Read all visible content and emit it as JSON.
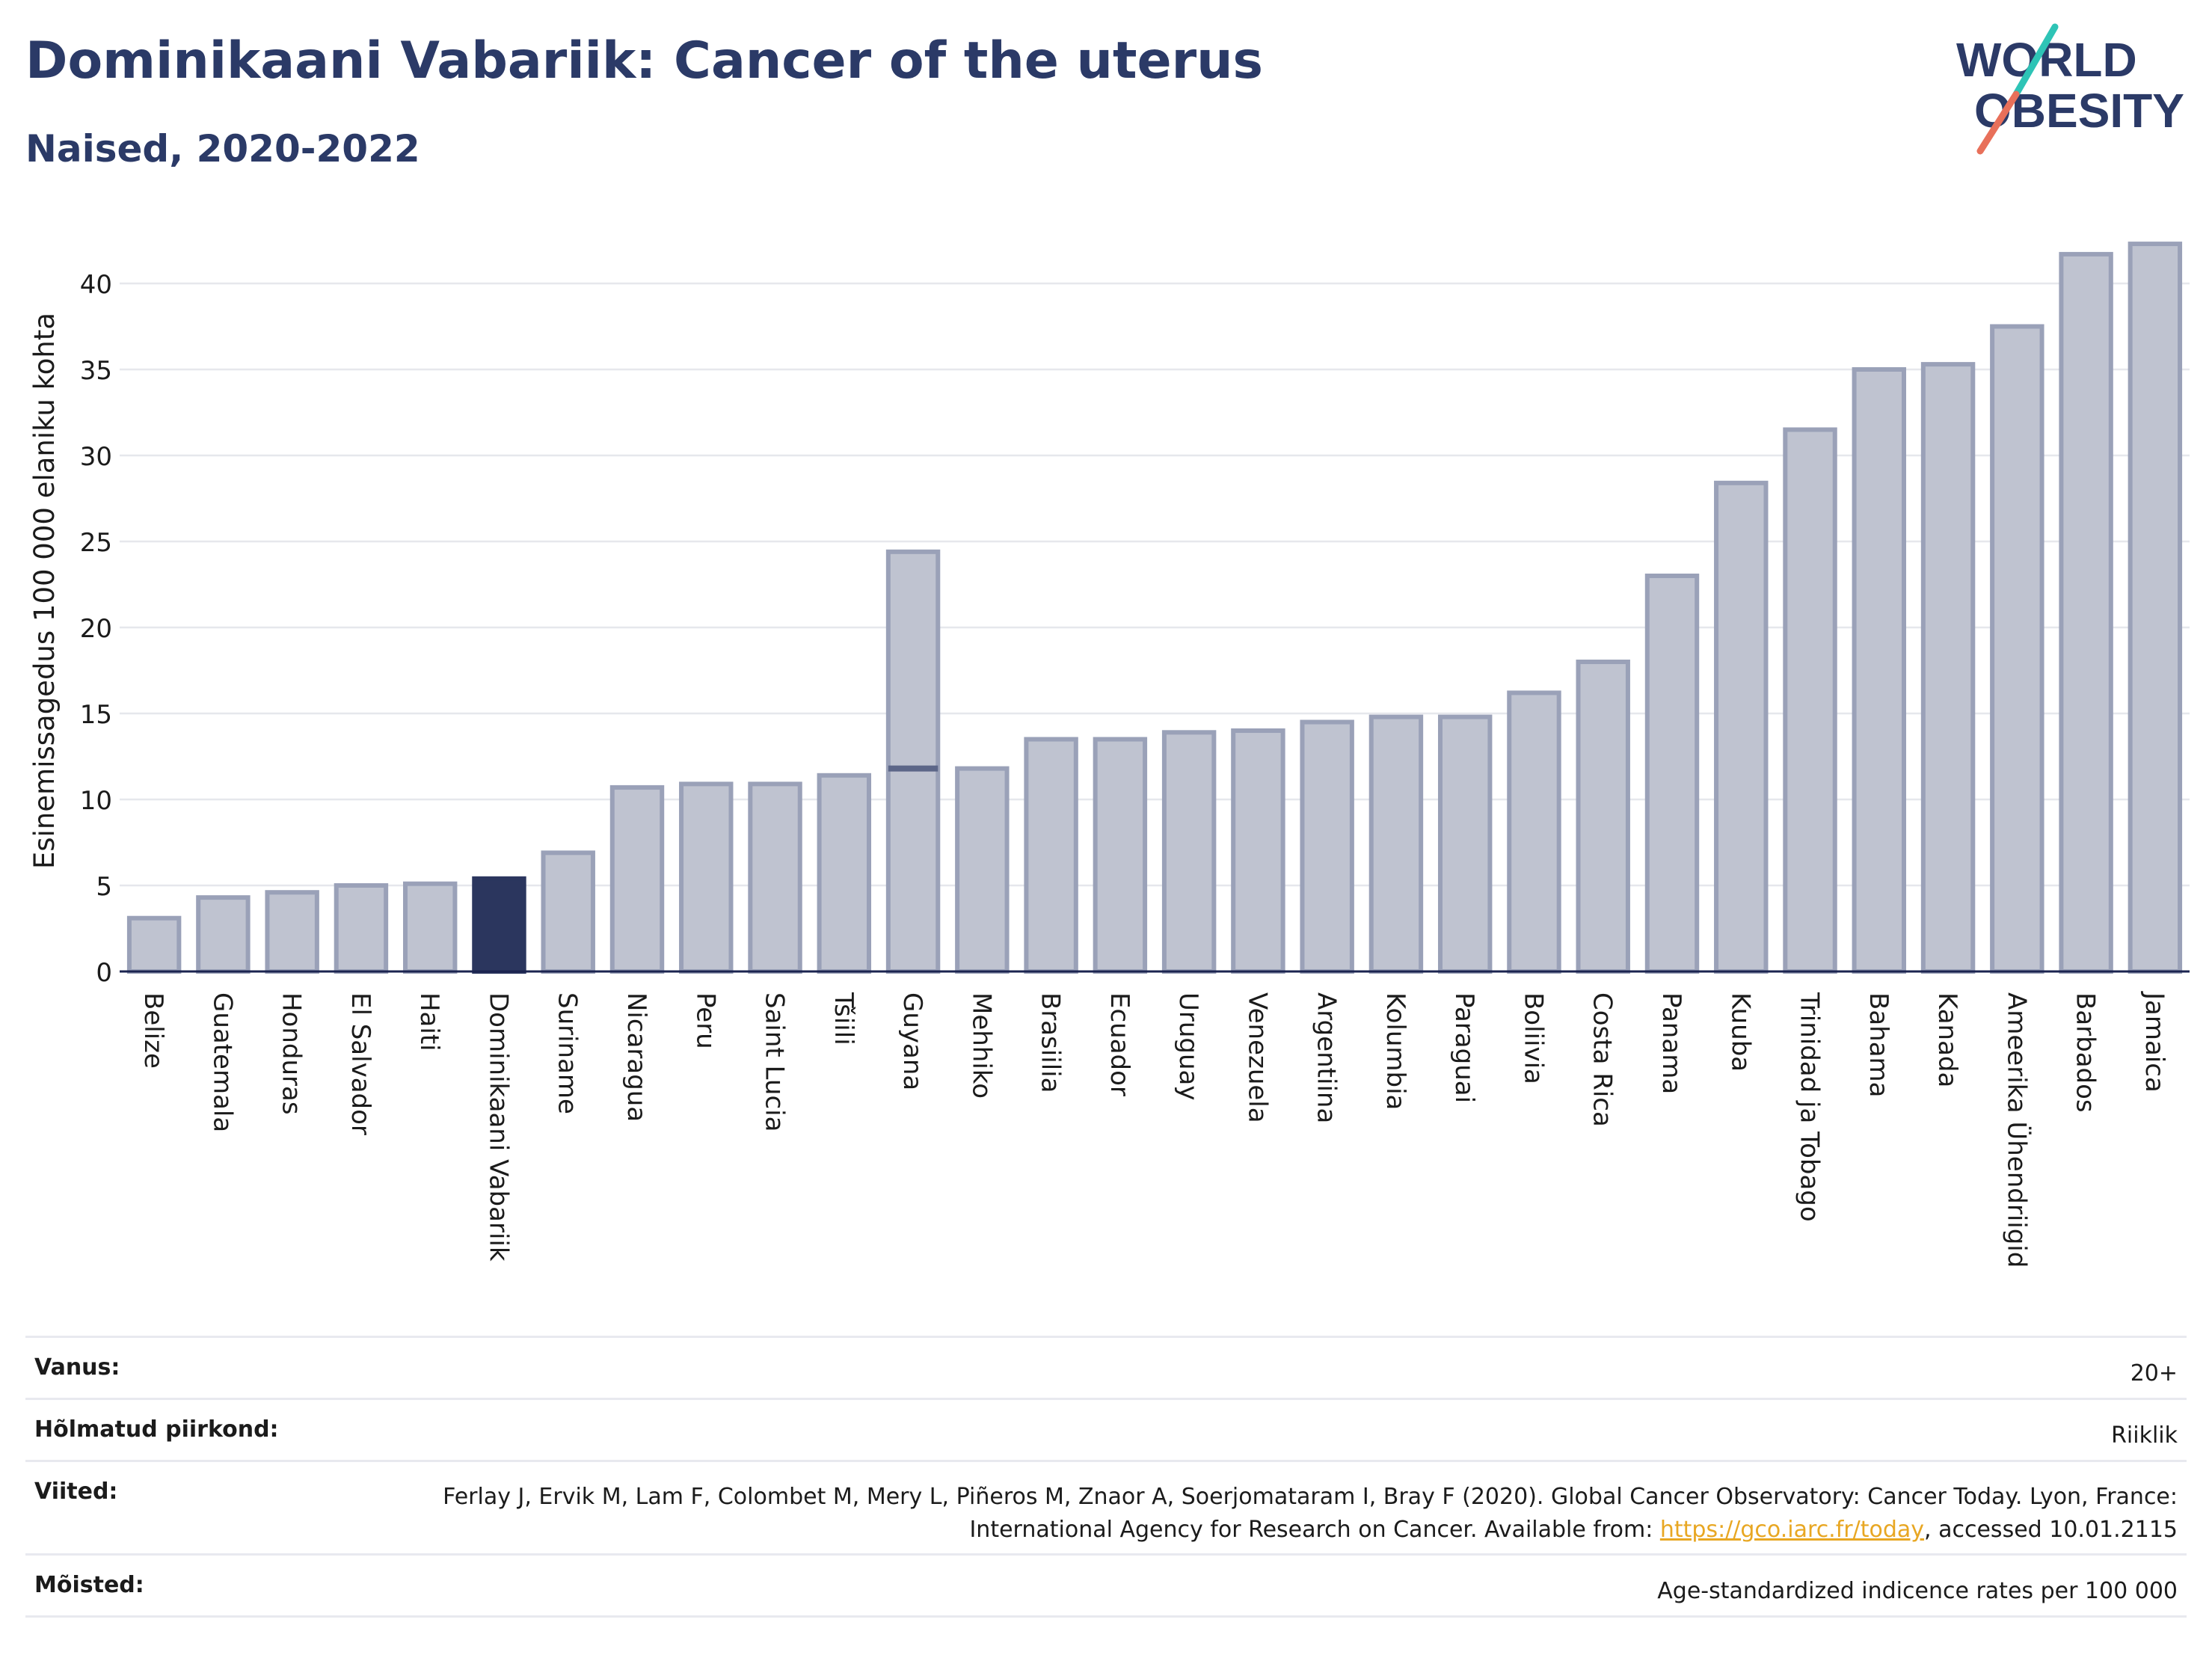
{
  "header": {
    "title": "Dominikaani Vabariik: Cancer of the uterus",
    "subtitle": "Naised, 2020-2022"
  },
  "logo": {
    "line1": "WORLD",
    "line2": "OBESITY"
  },
  "colors": {
    "bar": "#bfc3d0",
    "bar_border": "#9aa1b8",
    "highlight": "#2b365e",
    "title": "#2b3a67",
    "link": "#e8a723"
  },
  "chart_data": {
    "type": "bar",
    "ylabel": "Esinemissagedus 100 000 elaniku kohta",
    "xlabel": "",
    "ylim": [
      0,
      43
    ],
    "yticks": [
      0,
      5,
      10,
      15,
      20,
      25,
      30,
      35,
      40
    ],
    "grid": true,
    "highlight": "Dominikaani Vabariik",
    "categories": [
      "Belize",
      "Guatemala",
      "Honduras",
      "El Salvador",
      "Haiti",
      "Dominikaani Vabariik",
      "Suriname",
      "Nicaragua",
      "Peru",
      "Saint Lucia",
      "Tšiili",
      "Guyana",
      "Mehhiko",
      "Brasiilia",
      "Ecuador",
      "Uruguay",
      "Venezuela",
      "Argentiina",
      "Kolumbia",
      "Paraguai",
      "Boliivia",
      "Costa Rica",
      "Panama",
      "Kuuba",
      "Trinidad ja Tobago",
      "Bahama",
      "Kanada",
      "Ameerika Ühendriigid",
      "Barbados",
      "Jamaica"
    ],
    "values": [
      3.1,
      4.3,
      4.6,
      5.0,
      5.1,
      5.4,
      6.9,
      10.7,
      10.9,
      10.9,
      11.4,
      24.4,
      11.8,
      13.5,
      13.5,
      13.9,
      14.0,
      14.5,
      14.8,
      14.8,
      16.2,
      18.0,
      23.0,
      28.4,
      31.5,
      35.0,
      35.3,
      37.5,
      41.7,
      42.3
    ],
    "inner_marker": {
      "category": "Guyana",
      "value": 11.8
    }
  },
  "info": {
    "rows": [
      {
        "key": "Vanus:",
        "value": "20+"
      },
      {
        "key": "Hõlmatud piirkond:",
        "value": "Riiklik"
      },
      {
        "key": "Viited:",
        "value_pre": "Ferlay J, Ervik M, Lam F, Colombet M, Mery L, Piñeros M, Znaor A, Soerjomataram I, Bray F (2020). Global Cancer Observatory: Cancer Today. Lyon, France: International Agency for Research on Cancer. Available from: ",
        "link": "https://gco.iarc.fr/today",
        "value_post": ", accessed 10.01.2115"
      },
      {
        "key": "Mõisted:",
        "value": "Age-standardized indicence rates per 100 000"
      }
    ]
  }
}
